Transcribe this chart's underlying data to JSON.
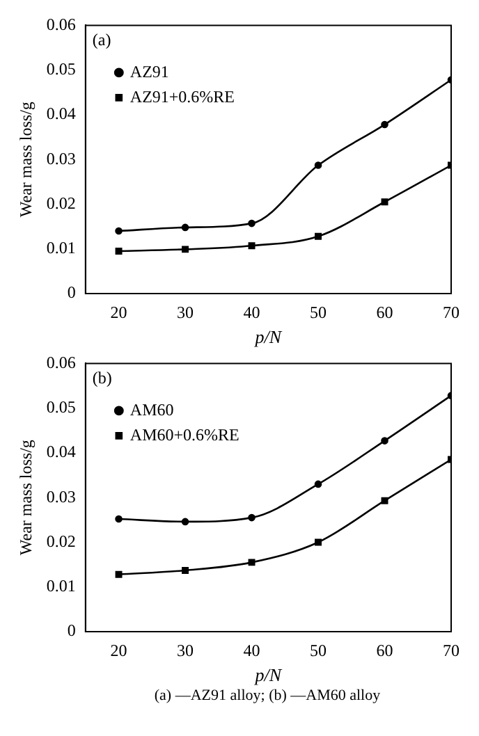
{
  "chart_data": [
    {
      "type": "line",
      "annotations": [
        "(a)"
      ],
      "xlabel": "p/N",
      "ylabel": "Wear mass loss/g",
      "x": [
        20,
        30,
        40,
        50,
        60,
        70
      ],
      "xlim": [
        15,
        70
      ],
      "xticks": [
        20,
        30,
        40,
        50,
        60,
        70
      ],
      "ylim": [
        0,
        0.06
      ],
      "yticks": [
        0,
        0.01,
        0.02,
        0.03,
        0.04,
        0.05,
        0.06
      ],
      "legend": "top left",
      "grid": false,
      "series": [
        {
          "name": "AZ91",
          "color": "#000000",
          "marker": "circle",
          "values": [
            0.014,
            0.0148,
            0.0157,
            0.0287,
            0.0378,
            0.0478
          ]
        },
        {
          "name": "AZ91+0.6%RE",
          "color": "#000000",
          "marker": "square",
          "values": [
            0.0095,
            0.0099,
            0.0107,
            0.0128,
            0.0205,
            0.0287
          ]
        }
      ]
    },
    {
      "type": "line",
      "annotations": [
        "(b)",
        "(a) —AZ91 alloy; (b) —AM60 alloy"
      ],
      "xlabel": "p/N",
      "ylabel": "Wear mass loss/g",
      "x": [
        20,
        30,
        40,
        50,
        60,
        70
      ],
      "xlim": [
        15,
        70
      ],
      "xticks": [
        20,
        30,
        40,
        50,
        60,
        70
      ],
      "ylim": [
        0,
        0.06
      ],
      "yticks": [
        0,
        0.01,
        0.02,
        0.03,
        0.04,
        0.05,
        0.06
      ],
      "legend": "top left",
      "grid": false,
      "series": [
        {
          "name": "AM60",
          "color": "#000000",
          "marker": "circle",
          "values": [
            0.0252,
            0.0246,
            0.0255,
            0.033,
            0.0427,
            0.0528
          ]
        },
        {
          "name": "AM60+0.6%RE",
          "color": "#000000",
          "marker": "square",
          "values": [
            0.0128,
            0.0137,
            0.0155,
            0.02,
            0.0293,
            0.0385
          ]
        }
      ]
    }
  ]
}
